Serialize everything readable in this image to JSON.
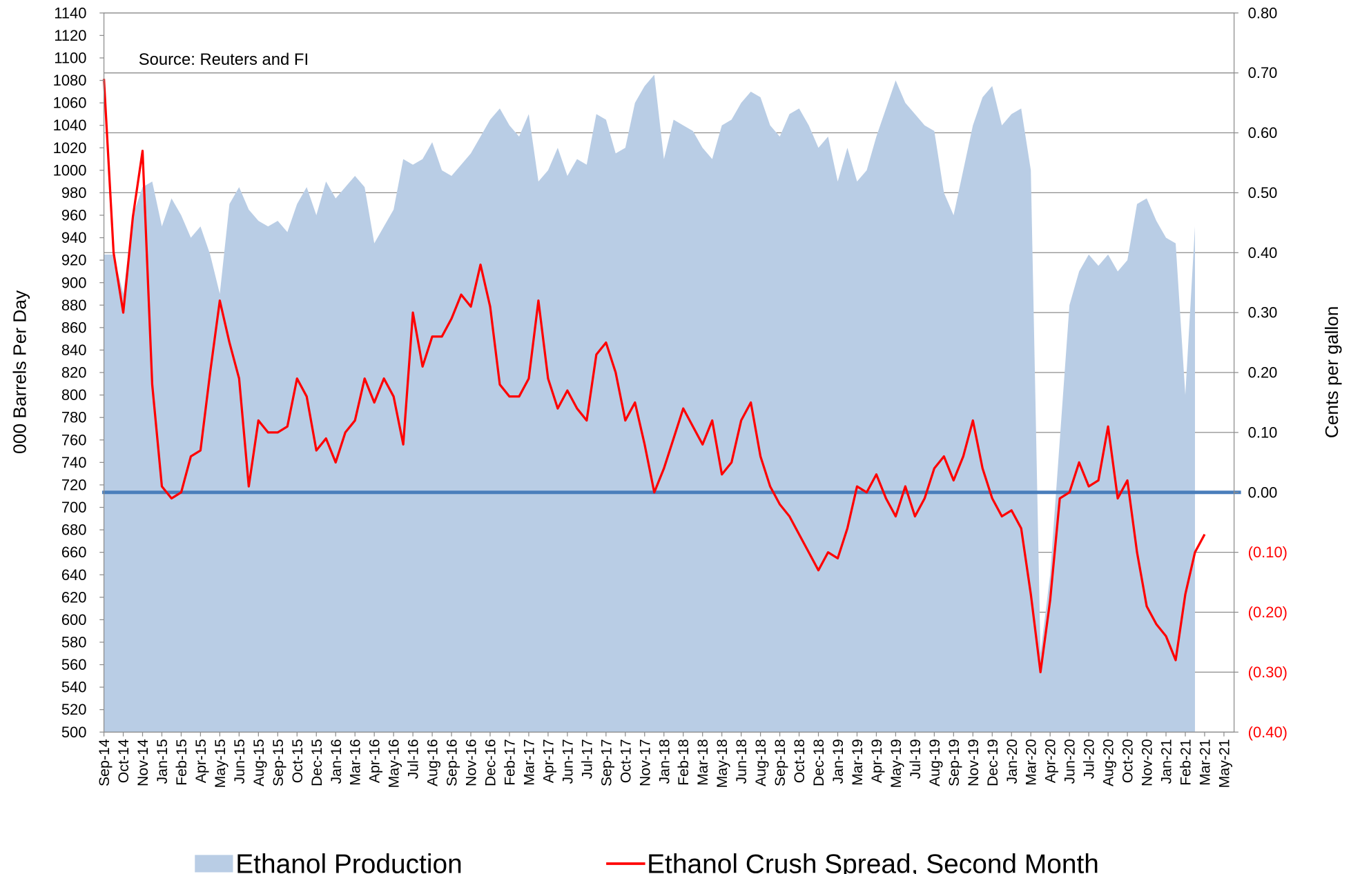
{
  "chart_data": {
    "type": "combo",
    "annotation": "Source: Reuters and FI",
    "y_label": "000 Barrels Per Day",
    "y2_label": "Cents per gallon",
    "categories": [
      "Sep-14",
      null,
      "Oct-14",
      null,
      "Nov-14",
      null,
      "Jan-15",
      null,
      "Feb-15",
      null,
      "Apr-15",
      null,
      "May-15",
      null,
      "Jun-15",
      null,
      "Aug-15",
      null,
      "Sep-15",
      null,
      "Oct-15",
      null,
      "Dec-15",
      null,
      "Jan-16",
      null,
      "Mar-16",
      null,
      "Apr-16",
      null,
      "May-16",
      null,
      "Jul-16",
      null,
      "Aug-16",
      null,
      "Sep-16",
      null,
      "Nov-16",
      null,
      "Dec-16",
      null,
      "Feb-17",
      null,
      "Mar-17",
      null,
      "Apr-17",
      null,
      "Jun-17",
      null,
      "Jul-17",
      null,
      "Sep-17",
      null,
      "Oct-17",
      null,
      "Nov-17",
      null,
      "Jan-18",
      null,
      "Feb-18",
      null,
      "Mar-18",
      null,
      "May-18",
      null,
      "Jun-18",
      null,
      "Aug-18",
      null,
      "Sep-18",
      null,
      "Oct-18",
      null,
      "Dec-18",
      null,
      "Jan-19",
      null,
      "Mar-19",
      null,
      "Apr-19",
      null,
      "May-19",
      null,
      "Jul-19",
      null,
      "Aug-19",
      null,
      "Sep-19",
      null,
      "Nov-19",
      null,
      "Dec-19",
      null,
      "Jan-20",
      null,
      "Mar-20",
      null,
      "Apr-20",
      null,
      "Jun-20",
      null,
      "Jul-20",
      null,
      "Aug-20",
      null,
      "Oct-20",
      null,
      "Nov-20",
      null,
      "Jan-21",
      null,
      "Feb-21",
      null,
      "Mar-21",
      null,
      "May-21"
    ],
    "series": [
      {
        "name": "Ethanol Production",
        "type": "area",
        "color": "#b9cde5",
        "axis": "y",
        "values": [
          925,
          925,
          890,
          960,
          985,
          990,
          950,
          975,
          960,
          940,
          950,
          925,
          890,
          970,
          985,
          965,
          955,
          950,
          955,
          945,
          970,
          985,
          960,
          990,
          975,
          985,
          995,
          985,
          935,
          950,
          965,
          1010,
          1005,
          1010,
          1025,
          1000,
          995,
          1005,
          1015,
          1030,
          1045,
          1055,
          1040,
          1030,
          1050,
          990,
          1000,
          1020,
          995,
          1010,
          1005,
          1050,
          1045,
          1015,
          1020,
          1060,
          1075,
          1085,
          1010,
          1045,
          1040,
          1035,
          1020,
          1010,
          1040,
          1045,
          1060,
          1070,
          1065,
          1040,
          1030,
          1050,
          1055,
          1040,
          1020,
          1030,
          990,
          1020,
          990,
          1000,
          1030,
          1055,
          1080,
          1060,
          1050,
          1040,
          1035,
          980,
          960,
          1000,
          1040,
          1065,
          1075,
          1040,
          1050,
          1055,
          1000,
          570,
          640,
          760,
          880,
          910,
          925,
          915,
          925,
          910,
          920,
          970,
          975,
          955,
          940,
          935,
          800,
          950,
          null,
          null,
          null
        ]
      },
      {
        "name": "Ethanol Crush Spread, Second Month",
        "type": "line",
        "color": "#ff0000",
        "axis": "y2",
        "values": [
          0.69,
          0.4,
          0.3,
          0.46,
          0.57,
          0.18,
          0.01,
          -0.01,
          0,
          0.06,
          0.07,
          0.2,
          0.32,
          0.25,
          0.19,
          0.01,
          0.12,
          0.1,
          0.1,
          0.11,
          0.19,
          0.16,
          0.07,
          0.09,
          0.05,
          0.1,
          0.12,
          0.19,
          0.15,
          0.19,
          0.16,
          0.08,
          0.3,
          0.21,
          0.26,
          0.26,
          0.29,
          0.33,
          0.31,
          0.38,
          0.31,
          0.18,
          0.16,
          0.16,
          0.19,
          0.32,
          0.19,
          0.14,
          0.17,
          0.14,
          0.12,
          0.23,
          0.25,
          0.2,
          0.12,
          0.15,
          0.08,
          0,
          0.04,
          0.09,
          0.14,
          0.11,
          0.08,
          0.12,
          0.03,
          0.05,
          0.12,
          0.15,
          0.06,
          0.01,
          -0.02,
          -0.04,
          -0.07,
          -0.1,
          -0.13,
          -0.1,
          -0.11,
          -0.06,
          0.01,
          0,
          0.03,
          -0.01,
          -0.04,
          0.01,
          -0.04,
          -0.01,
          0.04,
          0.06,
          0.02,
          0.06,
          0.12,
          0.04,
          -0.01,
          -0.04,
          -0.03,
          -0.06,
          -0.17,
          -0.3,
          -0.18,
          -0.01,
          0,
          0.05,
          0.01,
          0.02,
          0.11,
          -0.01,
          0.02,
          -0.1,
          -0.19,
          -0.22,
          -0.24,
          -0.28,
          -0.17,
          -0.1,
          -0.07,
          null,
          null
        ]
      }
    ],
    "ylim": [
      500,
      1140
    ],
    "yticks": [
      500,
      520,
      540,
      560,
      580,
      600,
      620,
      640,
      660,
      680,
      700,
      720,
      740,
      760,
      780,
      800,
      820,
      840,
      860,
      880,
      900,
      920,
      940,
      960,
      980,
      1000,
      1020,
      1040,
      1060,
      1080,
      1100,
      1120,
      1140
    ],
    "y2lim": [
      -0.4,
      0.8
    ],
    "y2ticks": [
      {
        "value": -0.4,
        "label": "(0.40)"
      },
      {
        "value": -0.3,
        "label": "(0.30)"
      },
      {
        "value": -0.2,
        "label": "(0.20)"
      },
      {
        "value": -0.1,
        "label": "(0.10)"
      },
      {
        "value": 0,
        "label": "0.00"
      },
      {
        "value": 0.1,
        "label": "0.10"
      },
      {
        "value": 0.2,
        "label": "0.20"
      },
      {
        "value": 0.3,
        "label": "0.30"
      },
      {
        "value": 0.4,
        "label": "0.40"
      },
      {
        "value": 0.5,
        "label": "0.50"
      },
      {
        "value": 0.6,
        "label": "0.60"
      },
      {
        "value": 0.7,
        "label": "0.70"
      },
      {
        "value": 0.8,
        "label": "0.80"
      }
    ],
    "y2_grid": true,
    "y2_negative_label_color": "#ff0000",
    "reference_lines": [
      {
        "axis": "y2",
        "value": 0,
        "color": "#4a7ebb"
      }
    ],
    "legend": "bottom"
  }
}
